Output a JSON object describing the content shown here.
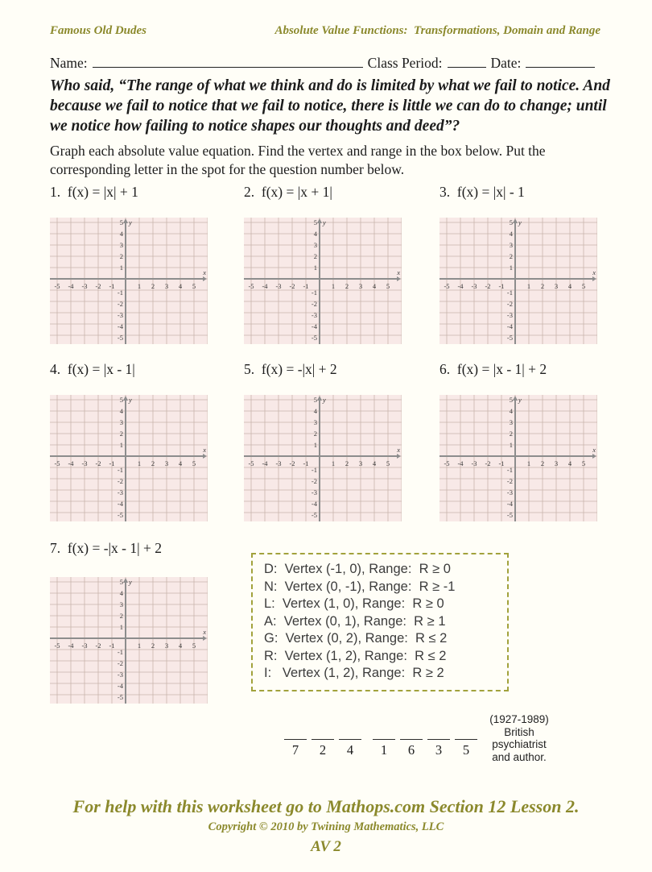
{
  "header": {
    "left_title": "Famous Old Dudes",
    "right_title": "Absolute Value Functions:  Transformations, Domain and Range"
  },
  "name_row": {
    "name_label": "Name:",
    "class_period_label": "Class Period:",
    "date_label": "Date:"
  },
  "quote": "Who said, “The range of what we think and do is limited by what we fail to notice. And because we fail to notice that we fail to notice, there is little we can do to change; until we notice how failing to notice shapes our thoughts and deed”?",
  "instructions": "Graph each absolute value equation.  Find the vertex and range in the box below.  Put the corresponding letter in the spot for the question number below.",
  "problems": [
    {
      "number": "1.",
      "equation": "f(x) = |x| + 1"
    },
    {
      "number": "2.",
      "equation": "f(x) = |x + 1|"
    },
    {
      "number": "3.",
      "equation": "f(x) = |x| - 1"
    },
    {
      "number": "4.",
      "equation": "f(x) = |x - 1|"
    },
    {
      "number": "5.",
      "equation": "f(x) = -|x| + 2"
    },
    {
      "number": "6.",
      "equation": "f(x) = |x - 1| + 2"
    },
    {
      "number": "7.",
      "equation": "f(x) = -|x - 1| + 2"
    }
  ],
  "graph": {
    "x_label": "x",
    "y_label": "y",
    "x_ticks": [
      -5,
      -4,
      -3,
      -2,
      -1,
      1,
      2,
      3,
      4,
      5
    ],
    "y_ticks": [
      -5,
      -4,
      -3,
      -2,
      -1,
      1,
      2,
      3,
      4,
      5
    ],
    "bg_color": "#f8e9e7",
    "grid_color": "#c9b3ac",
    "axis_color": "#8d8d8d"
  },
  "answer_key": {
    "lines": [
      "D:  Vertex (-1, 0), Range:  R ≥ 0",
      "N:  Vertex (0, -1), Range:  R ≥ -1",
      "L:  Vertex (1, 0), Range:  R ≥ 0",
      "A:  Vertex (0, 1), Range:  R ≥ 1",
      "G:  Vertex (0, 2), Range:  R ≤ 2",
      "R:  Vertex (1, 2), Range:  R ≤ 2",
      "I:   Vertex (1, 2), Range:  R ≥ 2"
    ]
  },
  "answer_blanks": {
    "numbers": [
      "7",
      "2",
      "4",
      "1",
      "6",
      "3",
      "5"
    ],
    "gap_after_index": 2
  },
  "author_note": {
    "lines": [
      "(1927-1989)",
      "British",
      "psychiatrist",
      "and author."
    ]
  },
  "footer": {
    "help_text": "For help with this worksheet go to Mathops.com Section 12 Lesson 2.",
    "copyright": "Copyright © 2010 by Twining Mathematics, LLC",
    "code": "AV 2"
  }
}
